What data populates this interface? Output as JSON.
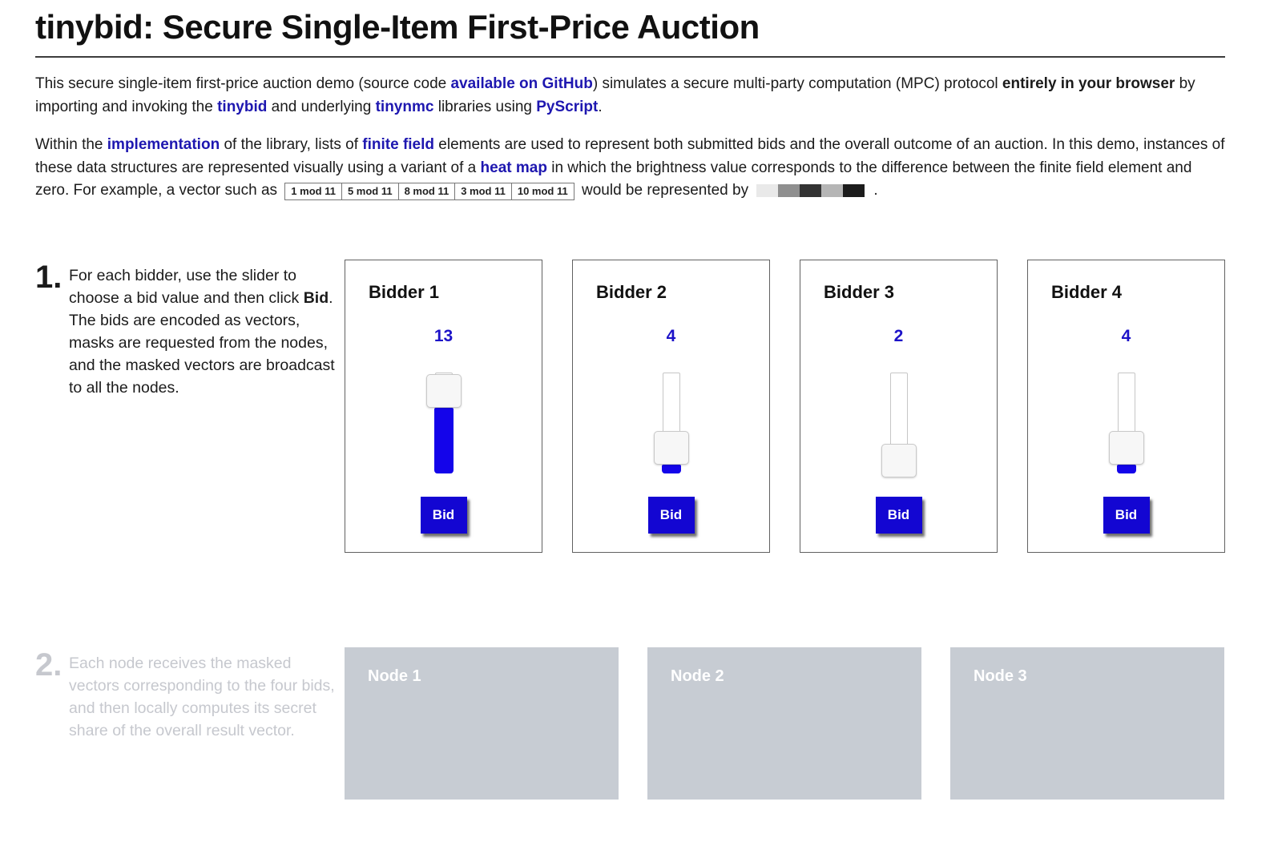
{
  "page": {
    "title": "tinybid: Secure Single-Item First-Price Auction"
  },
  "colors": {
    "accent_blue": "#1306d2",
    "slider_fill_blue": "#1404ea",
    "value_blue": "#1c12c8",
    "link_blue": "#1e17b0",
    "node_gray": "#c7ccd3",
    "disabled_gray": "#c6c8ce"
  },
  "intro": {
    "segments": [
      {
        "t": "This secure single-item first-price auction demo (source code "
      },
      {
        "t": "available on GitHub",
        "s": "link"
      },
      {
        "t": ") simulates a secure multi-party computation (MPC) protocol "
      },
      {
        "t": "entirely in your browser",
        "s": "bold"
      },
      {
        "t": " by importing and invoking the "
      },
      {
        "t": "tinybid",
        "s": "link"
      },
      {
        "t": " and underlying "
      },
      {
        "t": "tinynmc",
        "s": "link"
      },
      {
        "t": " libraries using "
      },
      {
        "t": "PyScript",
        "s": "link"
      },
      {
        "t": "."
      }
    ]
  },
  "explain": {
    "segments": [
      {
        "t": "Within the "
      },
      {
        "t": "implementation",
        "s": "link"
      },
      {
        "t": " of the library, lists of "
      },
      {
        "t": "finite field",
        "s": "link"
      },
      {
        "t": " elements are used to represent both submitted bids and the overall outcome of an auction. In this demo, instances of these data structures are represented visually using a variant of a "
      },
      {
        "t": "heat map",
        "s": "link"
      },
      {
        "t": " in which the brightness value corresponds to the difference between the finite field element and zero. For example, a vector such as "
      },
      {
        "s": "vector"
      },
      {
        "t": " would be represented by"
      },
      {
        "s": "heat"
      },
      {
        "t": " ."
      }
    ],
    "vector_cells": [
      "1 mod 11",
      "5 mod 11",
      "8 mod 11",
      "3 mod 11",
      "10 mod 11"
    ],
    "heat_cells": [
      "#e9e9e9",
      "#8f8f8f",
      "#333333",
      "#b5b5b5",
      "#1c1c1c"
    ]
  },
  "step1": {
    "number": "1.",
    "segments": [
      {
        "t": "For each bidder, use the slider to choose a bid value and then click "
      },
      {
        "t": "Bid",
        "s": "bold"
      },
      {
        "t": ". The bids are encoded as vectors, masks are requested from the nodes, and the masked vectors are broadcast to all the nodes."
      }
    ],
    "bid_button_label": "Bid",
    "slider_min": 0,
    "slider_max": 16,
    "bidders": [
      {
        "label": "Bidder 1",
        "value": 13
      },
      {
        "label": "Bidder 2",
        "value": 4
      },
      {
        "label": "Bidder 3",
        "value": 2
      },
      {
        "label": "Bidder 4",
        "value": 4
      }
    ]
  },
  "step2": {
    "number": "2.",
    "text": "Each node receives the masked vectors corresponding to the four bids, and then locally computes its secret share of the overall result vector.",
    "nodes": [
      {
        "label": "Node 1"
      },
      {
        "label": "Node 2"
      },
      {
        "label": "Node 3"
      }
    ]
  }
}
